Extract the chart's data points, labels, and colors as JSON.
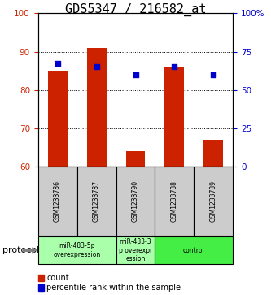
{
  "title": "GDS5347 / 216582_at",
  "samples": [
    "GSM1233786",
    "GSM1233787",
    "GSM1233790",
    "GSM1233788",
    "GSM1233789"
  ],
  "bar_heights": [
    85,
    91,
    64,
    86,
    67
  ],
  "bar_bottom": 60,
  "percentile_ranks_left": [
    87,
    86,
    84,
    86,
    84
  ],
  "left_ylim": [
    60,
    100
  ],
  "left_yticks": [
    60,
    70,
    80,
    90,
    100
  ],
  "right_ylim": [
    0,
    100
  ],
  "right_yticks": [
    0,
    25,
    50,
    75,
    100
  ],
  "right_yticklabels": [
    "0",
    "25",
    "50",
    "75",
    "100%"
  ],
  "bar_color": "#CC2200",
  "percentile_color": "#0000CC",
  "grid_color": "#000000",
  "protocol_label": "protocol",
  "legend_count_label": "count",
  "legend_percentile_label": "percentile rank within the sample",
  "bg_color": "#FFFFFF",
  "plot_bg": "#FFFFFF",
  "tick_label_color_left": "#CC2200",
  "tick_label_color_right": "#0000CC",
  "sample_box_color": "#CCCCCC",
  "title_fontsize": 11,
  "tick_fontsize": 7.5,
  "label_fontsize": 8
}
